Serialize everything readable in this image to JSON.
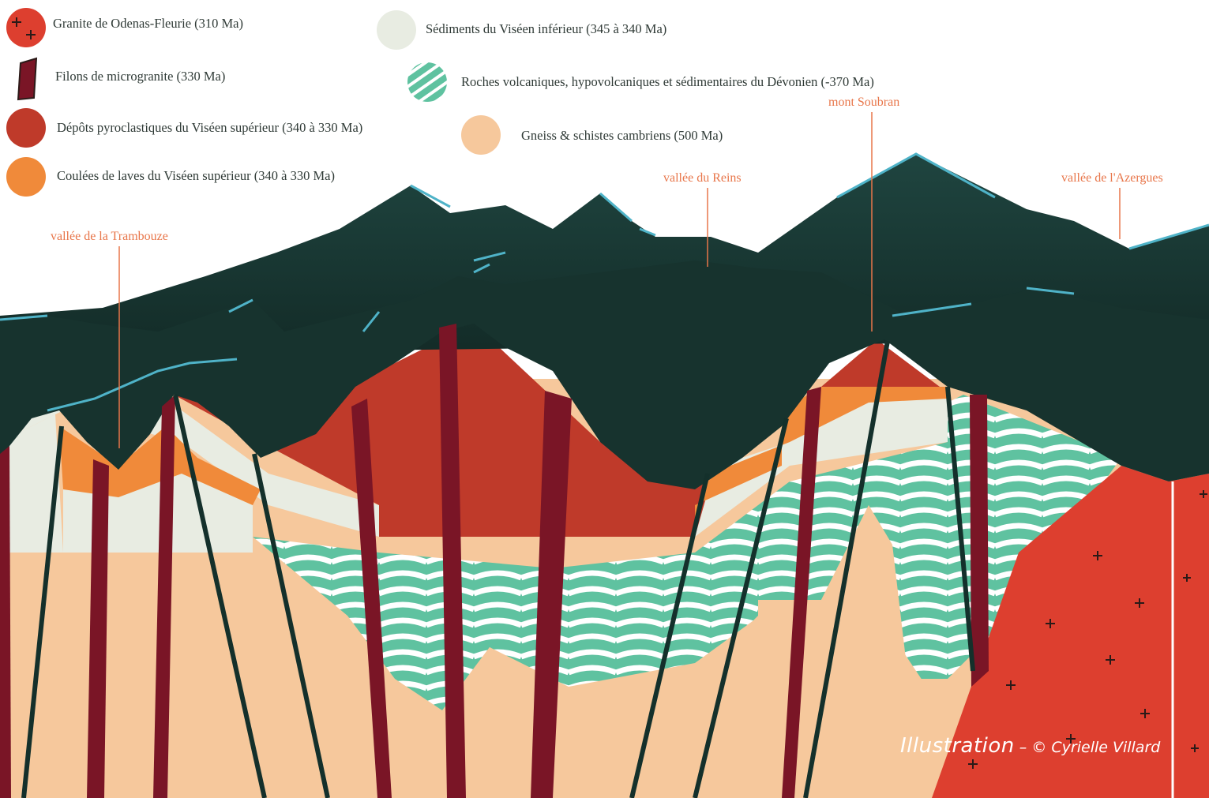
{
  "legend": [
    {
      "label": "Granite de Odenas-Fleurie (310 Ma)",
      "color": "#dd3f2f",
      "icon": "plus-marks"
    },
    {
      "label": "Filons de microgranite (330 Ma)",
      "color": "#7a1526",
      "icon": "dyke-bar"
    },
    {
      "label": "Dépôts pyroclastiques du Viséen supérieur (340 à 330 Ma)",
      "color": "#bf3a2a",
      "icon": "circle"
    },
    {
      "label": "Coulées de laves du Viséen supérieur (340 à 330 Ma)",
      "color": "#f08a3a",
      "icon": "circle"
    },
    {
      "label": "Sédiments du Viséen inférieur (345 à 340 Ma)",
      "color": "#e8ece2",
      "icon": "circle"
    },
    {
      "label": "Roches volcaniques, hypovolcaniques et sédimentaires du Dévonien (-370 Ma)",
      "color": "#5fc2a0",
      "icon": "stripes"
    },
    {
      "label": "Gneiss & schistes cambriens (500 Ma)",
      "color": "#f6c89c",
      "icon": "circle"
    }
  ],
  "places": [
    {
      "label": "vallée de la Trambouze"
    },
    {
      "label": "vallée du Reins"
    },
    {
      "label": "mont Soubran"
    },
    {
      "label": "vallée de l'Azergues"
    }
  ],
  "credit": {
    "prefix": "Illustration",
    "separator": " – ",
    "author": "© Cyrielle Villard"
  },
  "colors": {
    "mountain_dark": "#17332e",
    "mountain_mid": "#1f4540",
    "ridge_highlight": "#4fb3c8",
    "leader_line": "#e8764a"
  }
}
